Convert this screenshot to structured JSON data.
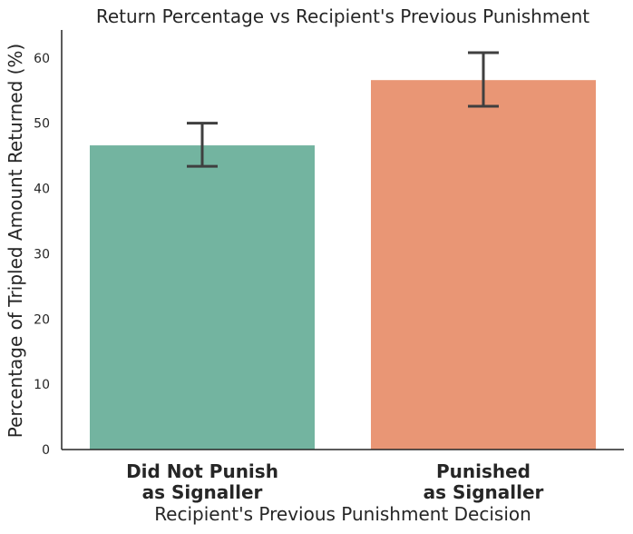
{
  "chart_data": {
    "type": "bar",
    "title": "Return Percentage vs Recipient's Previous Punishment",
    "xlabel": "Recipient's Previous Punishment Decision",
    "ylabel": "Percentage of Tripled Amount Returned (%)",
    "categories": [
      [
        "Did Not Punish",
        "as Signaller"
      ],
      [
        "Punished",
        "as Signaller"
      ]
    ],
    "values": [
      46.6,
      56.6
    ],
    "error_low": [
      43.4,
      52.6
    ],
    "error_high": [
      50.0,
      60.8
    ],
    "ylim": [
      0,
      64
    ],
    "yticks": [
      0,
      10,
      20,
      30,
      40,
      50,
      60
    ],
    "colors": [
      "#73b4a0",
      "#e99675"
    ],
    "grid": false,
    "legend": "none"
  }
}
